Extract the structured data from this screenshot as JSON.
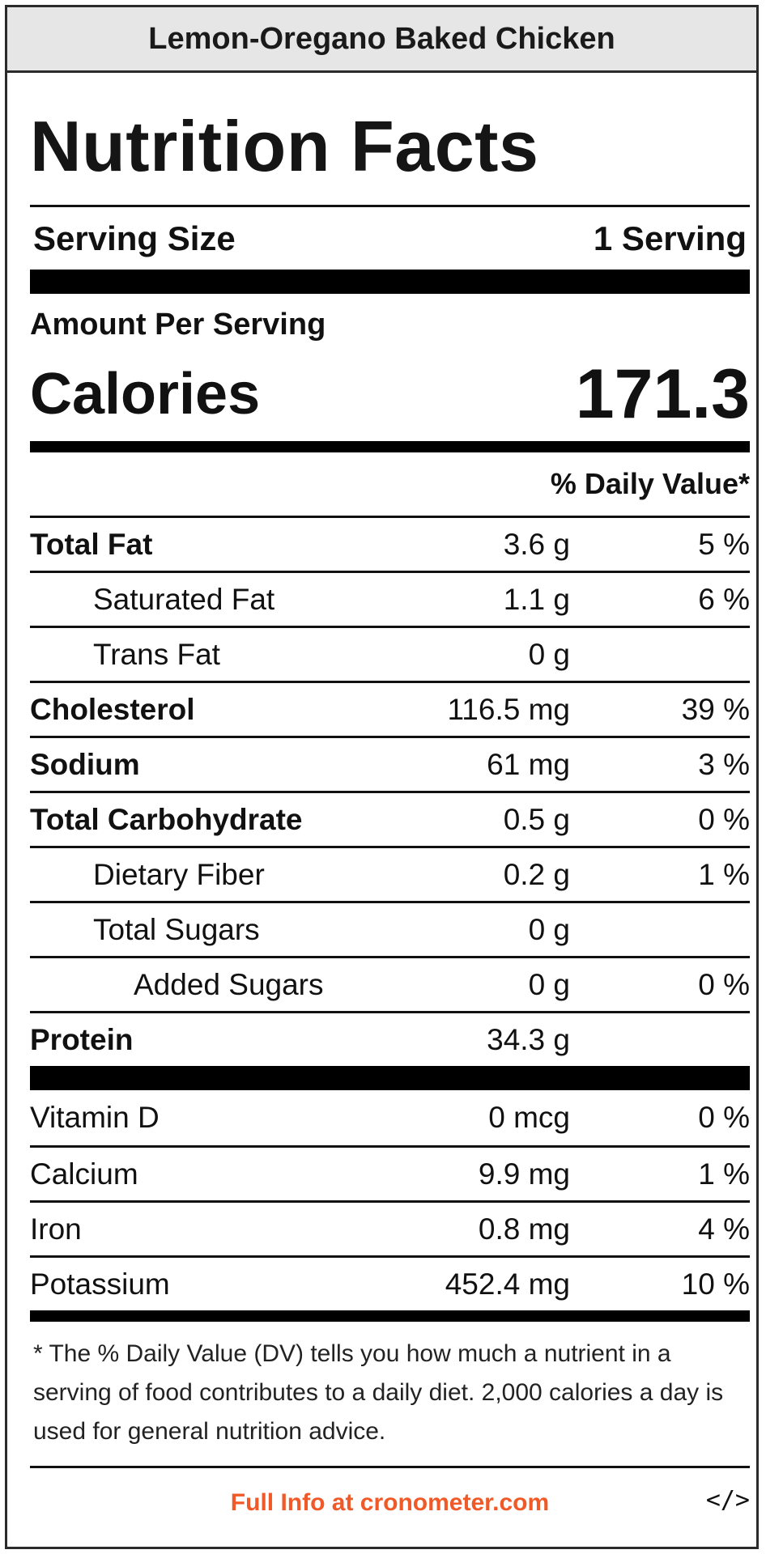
{
  "recipe_title": "Lemon-Oregano Baked Chicken",
  "heading": "Nutrition Facts",
  "serving": {
    "label": "Serving Size",
    "value": "1 Serving"
  },
  "amount_per_serving": "Amount Per Serving",
  "calories": {
    "label": "Calories",
    "value": "171.3"
  },
  "dv_header": "% Daily Value*",
  "nutrients": [
    {
      "name": "Total Fat",
      "amount": "3.6 g",
      "dv": "5 %"
    },
    {
      "name": "Saturated Fat",
      "amount": "1.1 g",
      "dv": "6 %"
    },
    {
      "name": "Trans Fat",
      "amount": "0 g",
      "dv": ""
    },
    {
      "name": "Cholesterol",
      "amount": "116.5 mg",
      "dv": "39 %"
    },
    {
      "name": "Sodium",
      "amount": "61 mg",
      "dv": "3 %"
    },
    {
      "name": "Total Carbohydrate",
      "amount": "0.5 g",
      "dv": "0 %"
    },
    {
      "name": "Dietary Fiber",
      "amount": "0.2 g",
      "dv": "1 %"
    },
    {
      "name": "Total Sugars",
      "amount": "0 g",
      "dv": ""
    },
    {
      "name": "Added Sugars",
      "amount": "0 g",
      "dv": "0 %"
    },
    {
      "name": "Protein",
      "amount": "34.3 g",
      "dv": ""
    }
  ],
  "vitamins": [
    {
      "name": "Vitamin D",
      "amount": "0 mcg",
      "dv": "0 %"
    },
    {
      "name": "Calcium",
      "amount": "9.9 mg",
      "dv": "1 %"
    },
    {
      "name": "Iron",
      "amount": "0.8 mg",
      "dv": "4 %"
    },
    {
      "name": "Potassium",
      "amount": "452.4 mg",
      "dv": "10 %"
    }
  ],
  "footnote": "* The % Daily Value (DV) tells you how much a nutrient in a serving of food contributes to a daily diet. 2,000 calories a day is used for general nutrition advice.",
  "footer": {
    "link_text": "Full Info at cronometer.com",
    "link_color": "#f05a28",
    "embed_icon": "code-embed-icon",
    "embed_glyph": "</>"
  }
}
